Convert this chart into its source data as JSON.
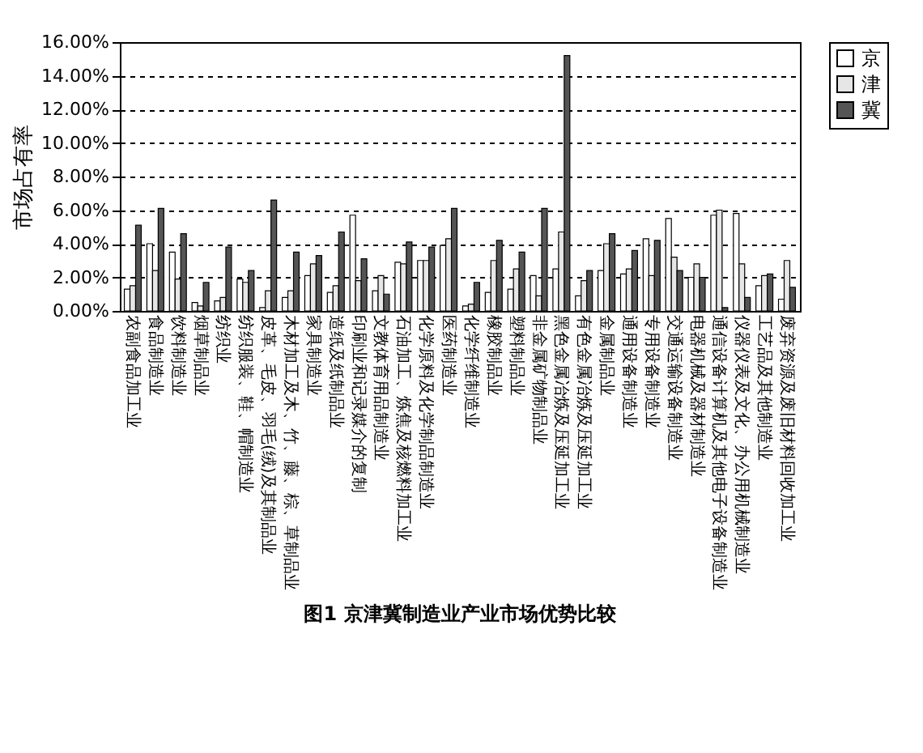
{
  "chart_data": {
    "type": "bar",
    "title": "图1  京津冀制造业产业市场优势比较",
    "ylabel": "市场占有率",
    "categories": [
      "农副食品加工业",
      "食品制造业",
      "饮料制造业",
      "烟草制品业",
      "纺织业",
      "纺织服装、鞋、帽制造业",
      "皮革、毛皮、羽毛(绒)及其制品业",
      "木材加工及木、竹、藤、棕、草制品业",
      "家具制造业",
      "造纸及纸制品业",
      "印刷业和记录媒介的复制",
      "文教体育用品制造业",
      "石油加工、炼焦及核燃料加工业",
      "化学原料及化学制品制造业",
      "医药制造业",
      "化学纤维制造业",
      "橡胶制品业",
      "塑料制品业",
      "非金属矿物制品业",
      "黑色金属冶炼及压延加工业",
      "有色金属冶炼及压延加工业",
      "金属制品业",
      "通用设备制造业",
      "专用设备制造业",
      "交通运输设备制造业",
      "电器机械及器材制造业",
      "通信设备计算机及其他电子设备制造业",
      "仪器仪表及文化、办公用机械制造业",
      "工艺品及其他制造业",
      "废弃资源及废旧材料回收加工业"
    ],
    "series": [
      {
        "name": "京",
        "color": "#ffffff",
        "values": [
          1.3,
          4.0,
          3.5,
          0.5,
          0.6,
          1.9,
          0.2,
          0.8,
          2.1,
          1.1,
          5.7,
          1.2,
          2.9,
          3.0,
          3.9,
          0.3,
          1.1,
          1.3,
          2.1,
          2.5,
          0.9,
          2.4,
          2.2,
          4.3,
          5.5,
          2.0,
          5.7,
          5.8,
          1.5,
          0.7
        ]
      },
      {
        "name": "津",
        "color": "#e6e6e6",
        "values": [
          1.5,
          2.4,
          1.9,
          0.3,
          0.8,
          1.7,
          1.2,
          1.2,
          2.8,
          1.5,
          1.8,
          2.1,
          2.8,
          3.0,
          4.3,
          0.4,
          3.0,
          2.5,
          0.9,
          4.7,
          1.8,
          4.0,
          2.5,
          2.1,
          3.2,
          2.8,
          6.0,
          2.8,
          2.1,
          3.0
        ]
      },
      {
        "name": "冀",
        "color": "#555555",
        "values": [
          5.1,
          6.1,
          4.6,
          1.7,
          3.8,
          2.4,
          6.6,
          3.5,
          3.3,
          4.7,
          3.1,
          1.0,
          4.1,
          3.8,
          6.1,
          1.7,
          4.2,
          3.5,
          6.1,
          15.2,
          2.4,
          4.6,
          3.6,
          4.2,
          2.4,
          2.0,
          0.2,
          0.8,
          2.2,
          1.4
        ]
      }
    ],
    "ylim": [
      0,
      16
    ],
    "yticks": [
      {
        "value": 0,
        "label": "0.00%"
      },
      {
        "value": 2,
        "label": "2.00%"
      },
      {
        "value": 4,
        "label": "4.00%"
      },
      {
        "value": 6,
        "label": "6.00%"
      },
      {
        "value": 8,
        "label": "8.00%"
      },
      {
        "value": 10,
        "label": "10.00%"
      },
      {
        "value": 12,
        "label": "12.00%"
      },
      {
        "value": 14,
        "label": "14.00%"
      },
      {
        "value": 16,
        "label": "16.00%"
      }
    ],
    "grid": "y",
    "legend": "right"
  }
}
